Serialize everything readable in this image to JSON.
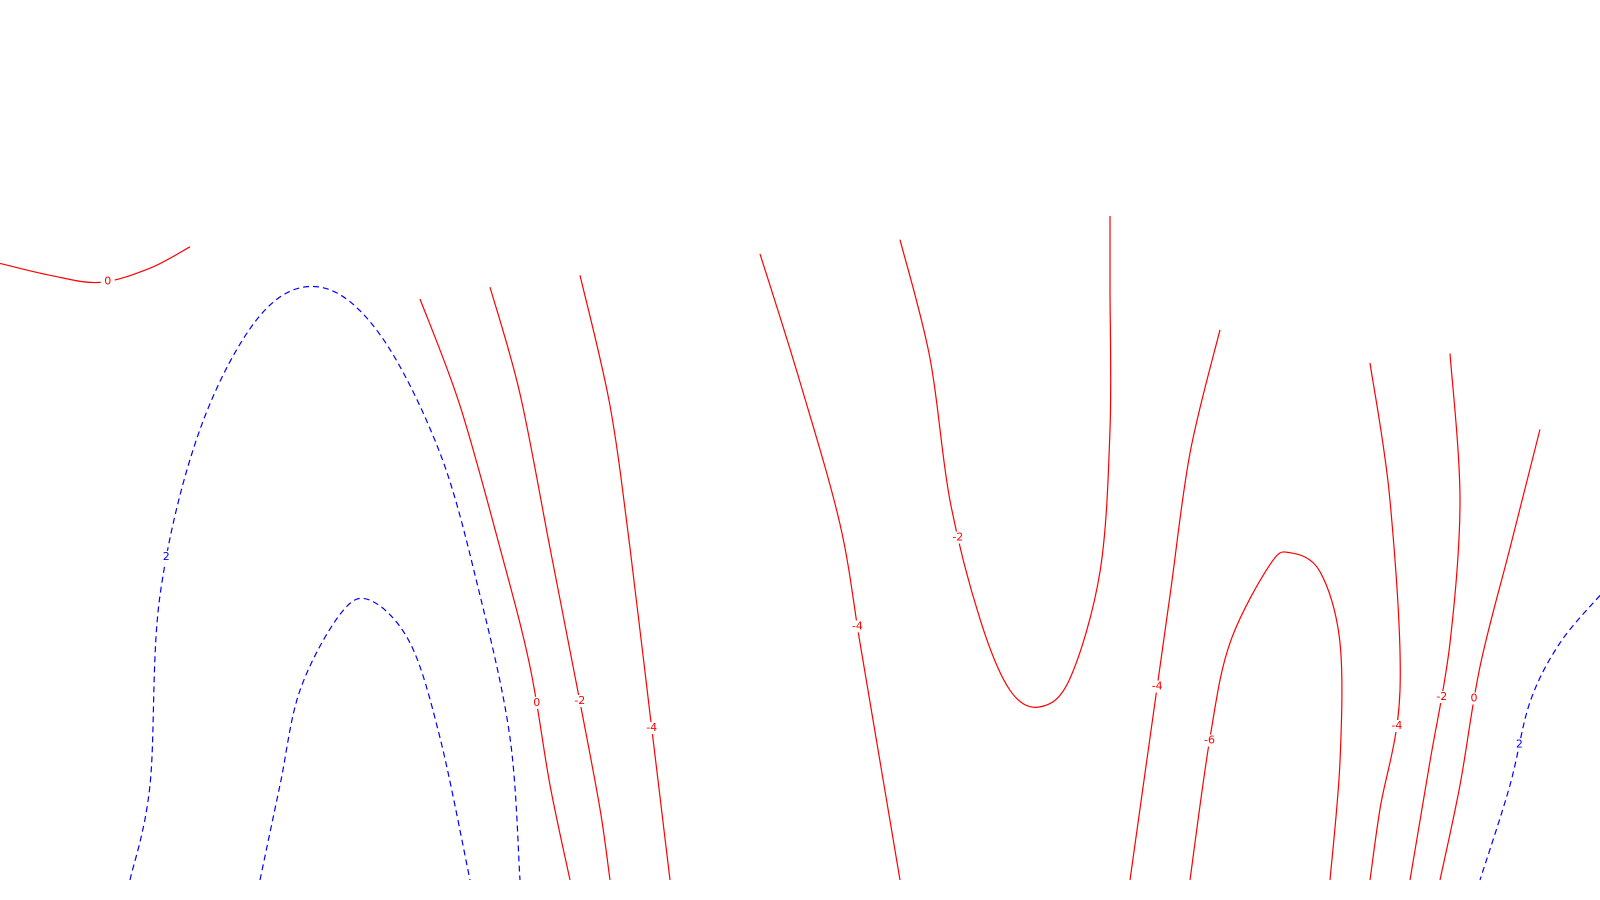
{
  "chart_data": {
    "type": "contour",
    "title": "",
    "xlabel": "",
    "ylabel": "",
    "grid": false,
    "colors": {
      "negative_and_zero": "#ff0000",
      "positive": "#0000ff"
    },
    "levels": [
      {
        "level": -6,
        "label": "-6",
        "style": "solid"
      },
      {
        "level": -4,
        "label": "-4",
        "style": "solid"
      },
      {
        "level": -2,
        "label": "-2",
        "style": "solid"
      },
      {
        "level": 0,
        "label": "0",
        "style": "solid"
      },
      {
        "level": 2,
        "label": "2",
        "style": "dashed"
      }
    ],
    "contours": [
      {
        "level": 0,
        "label": "0",
        "points": [
          [
            0.0,
            2.8
          ],
          [
            0.05,
            2.75
          ],
          [
            0.1,
            2.72
          ],
          [
            0.15,
            2.78
          ],
          [
            0.19,
            2.87
          ]
        ]
      },
      {
        "level": 2,
        "label": "2",
        "points": [
          [
            0.13,
            0.2
          ],
          [
            0.15,
            0.6
          ],
          [
            0.16,
            1.4
          ],
          [
            0.2,
            2.1
          ],
          [
            0.26,
            2.58
          ],
          [
            0.32,
            2.7
          ],
          [
            0.38,
            2.5
          ],
          [
            0.44,
            2.0
          ],
          [
            0.48,
            1.4
          ],
          [
            0.51,
            0.8
          ],
          [
            0.52,
            0.2
          ]
        ]
      },
      {
        "level": 2,
        "label": "2",
        "points": [
          [
            0.26,
            0.2
          ],
          [
            0.28,
            0.6
          ],
          [
            0.3,
            1.0
          ],
          [
            0.34,
            1.32
          ],
          [
            0.37,
            1.38
          ],
          [
            0.41,
            1.2
          ],
          [
            0.44,
            0.8
          ],
          [
            0.47,
            0.2
          ]
        ]
      },
      {
        "level": 0,
        "label": "0",
        "points": [
          [
            0.42,
            2.65
          ],
          [
            0.46,
            2.2
          ],
          [
            0.5,
            1.6
          ],
          [
            0.53,
            1.1
          ],
          [
            0.55,
            0.6
          ],
          [
            0.57,
            0.2
          ]
        ]
      },
      {
        "level": -2,
        "label": "-2",
        "points": [
          [
            0.49,
            2.7
          ],
          [
            0.52,
            2.25
          ],
          [
            0.55,
            1.6
          ],
          [
            0.58,
            0.95
          ],
          [
            0.6,
            0.5
          ],
          [
            0.61,
            0.2
          ]
        ]
      },
      {
        "level": -4,
        "label": "-4",
        "points": [
          [
            0.58,
            2.75
          ],
          [
            0.61,
            2.2
          ],
          [
            0.63,
            1.6
          ],
          [
            0.65,
            0.9
          ],
          [
            0.67,
            0.2
          ]
        ]
      },
      {
        "level": -4,
        "label": "-4",
        "points": [
          [
            0.76,
            2.84
          ],
          [
            0.8,
            2.3
          ],
          [
            0.84,
            1.7
          ],
          [
            0.86,
            1.2
          ],
          [
            0.88,
            0.7
          ],
          [
            0.9,
            0.2
          ]
        ]
      },
      {
        "level": -2,
        "label": "-2",
        "points": [
          [
            0.9,
            2.9
          ],
          [
            0.93,
            2.4
          ],
          [
            0.95,
            1.8
          ],
          [
            0.98,
            1.3
          ],
          [
            1.01,
            1.0
          ],
          [
            1.04,
            0.93
          ],
          [
            1.07,
            1.05
          ],
          [
            1.1,
            1.5
          ],
          [
            1.11,
            2.1
          ],
          [
            1.11,
            2.7
          ],
          [
            1.11,
            3.0
          ]
        ]
      },
      {
        "level": -4,
        "label": "-4",
        "points": [
          [
            1.22,
            2.52
          ],
          [
            1.19,
            2.0
          ],
          [
            1.17,
            1.4
          ],
          [
            1.15,
            0.8
          ],
          [
            1.13,
            0.2
          ]
        ]
      },
      {
        "level": -6,
        "label": "-6",
        "points": [
          [
            1.19,
            0.2
          ],
          [
            1.21,
            0.8
          ],
          [
            1.23,
            1.2
          ],
          [
            1.27,
            1.53
          ],
          [
            1.29,
            1.58
          ],
          [
            1.32,
            1.5
          ],
          [
            1.34,
            1.2
          ],
          [
            1.34,
            0.7
          ],
          [
            1.33,
            0.2
          ]
        ]
      },
      {
        "level": -4,
        "label": "-4",
        "points": [
          [
            1.37,
            2.38
          ],
          [
            1.39,
            1.8
          ],
          [
            1.4,
            1.0
          ],
          [
            1.38,
            0.5
          ],
          [
            1.37,
            0.2
          ]
        ]
      },
      {
        "level": -2,
        "label": "-2",
        "points": [
          [
            1.45,
            2.42
          ],
          [
            1.46,
            1.8
          ],
          [
            1.45,
            1.2
          ],
          [
            1.43,
            0.7
          ],
          [
            1.41,
            0.2
          ]
        ]
      },
      {
        "level": 0,
        "label": "0",
        "points": [
          [
            1.54,
            2.1
          ],
          [
            1.51,
            1.6
          ],
          [
            1.48,
            1.1
          ],
          [
            1.46,
            0.6
          ],
          [
            1.44,
            0.2
          ]
        ]
      },
      {
        "level": 2,
        "label": "2",
        "points": [
          [
            1.6,
            1.4
          ],
          [
            1.56,
            1.2
          ],
          [
            1.53,
            0.95
          ],
          [
            1.51,
            0.6
          ],
          [
            1.48,
            0.2
          ]
        ]
      }
    ]
  }
}
